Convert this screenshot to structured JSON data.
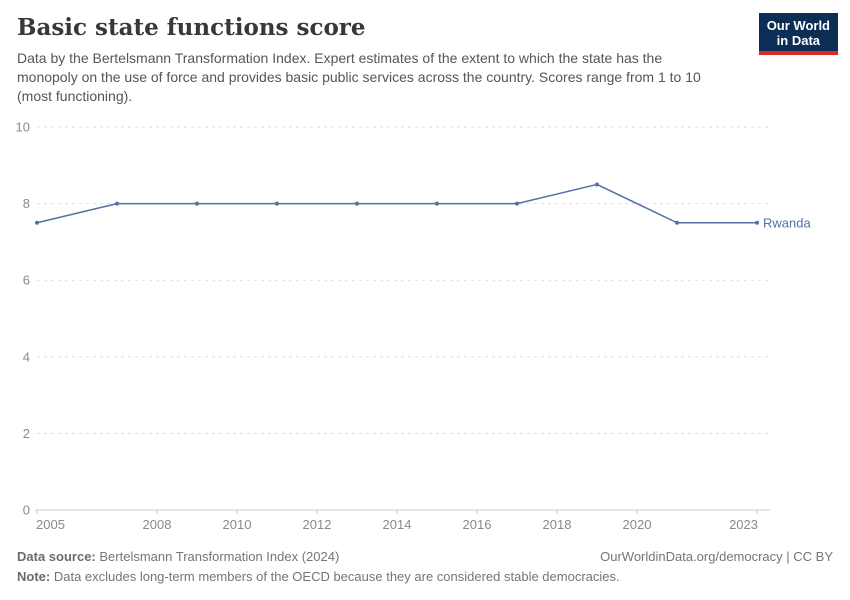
{
  "header": {
    "title": "Basic state functions score",
    "subtitle": "Data by the Bertelsmann Transformation Index. Expert estimates of the extent to which the state has the monopoly on the use of force and provides basic public services across the country. Scores range from 1 to 10 (most functioning)."
  },
  "logo": {
    "line1": "Our World",
    "line2": "in Data",
    "bg_color": "#0d2e54",
    "accent_color": "#dc2927"
  },
  "chart_data": {
    "type": "line",
    "title": "Basic state functions score",
    "x": [
      2005,
      2007,
      2009,
      2011,
      2013,
      2015,
      2017,
      2019,
      2021,
      2023
    ],
    "series": [
      {
        "name": "Rwanda",
        "values": [
          7.5,
          8,
          8,
          8,
          8,
          8,
          8,
          8.5,
          7.5,
          7.5
        ],
        "color": "#5271a5"
      }
    ],
    "x_ticks": [
      2005,
      2008,
      2010,
      2012,
      2014,
      2016,
      2018,
      2020,
      2023
    ],
    "y_ticks": [
      0,
      2,
      4,
      6,
      8,
      10
    ],
    "xlim": [
      2005,
      2023
    ],
    "ylim": [
      0,
      10
    ],
    "grid": "horizontal-dashed",
    "legend": "end-of-line-label",
    "colors": {
      "grid": "#dddddd",
      "axis": "#cccccc",
      "tick_label": "#8a8a8a"
    }
  },
  "footer": {
    "source_label": "Data source:",
    "source_text": "Bertelsmann Transformation Index (2024)",
    "note_label": "Note:",
    "note_text": "Data excludes long-term members of the OECD because they are considered stable democracies.",
    "right_text": "OurWorldinData.org/democracy | CC BY"
  }
}
